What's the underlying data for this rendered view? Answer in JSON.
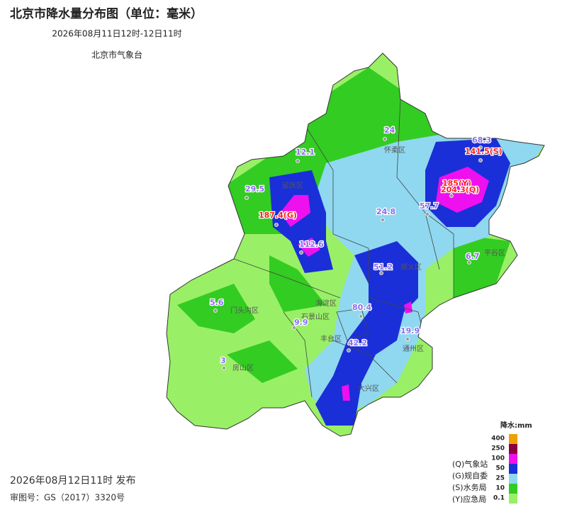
{
  "header": {
    "title": "北京市降水量分布图（单位：毫米）",
    "subtitle": "2026年08月11日12时-12日11时",
    "issuer": "北京市气象台"
  },
  "footer": {
    "release": "2026年08月12日11时 发布",
    "map_number": "审图号：GS（2017）3320号"
  },
  "legend": {
    "title": "降水:mm",
    "levels": [
      {
        "label": "400",
        "color": "#f0a000"
      },
      {
        "label": "250",
        "color": "#8b0040"
      },
      {
        "label": "100",
        "color": "#ee10ee"
      },
      {
        "label": "50",
        "color": "#1a2fd8"
      },
      {
        "label": "25",
        "color": "#8fd8f0"
      },
      {
        "label": "10",
        "color": "#33cc22"
      },
      {
        "label": "0.1",
        "color": "#99f066"
      }
    ],
    "sources": [
      "(Q)气象站",
      "(G)规自委",
      "(S)水务局",
      "(Y)应急局"
    ]
  },
  "districts": [
    "怀柔区",
    "延庆区",
    "门头沟区",
    "石景山区",
    "海淀区",
    "丰台区",
    "房山区",
    "顺义区",
    "平谷区",
    "通州区",
    "大兴区"
  ],
  "stations": [
    {
      "label": "24",
      "color": "#8a6ef0"
    },
    {
      "label": "12.1",
      "color": "#8a6ef0"
    },
    {
      "label": "29.5",
      "color": "#8a6ef0"
    },
    {
      "label": "187.4(G)",
      "color": "#ff2020"
    },
    {
      "label": "112.6",
      "color": "#8a6ef0"
    },
    {
      "label": "24.8",
      "color": "#8a6ef0"
    },
    {
      "label": "57.7",
      "color": "#8a6ef0"
    },
    {
      "label": "68.3",
      "color": "#8a6ef0"
    },
    {
      "label": "141.5(S)",
      "color": "#ff2020"
    },
    {
      "label": "185(Y)",
      "color": "#ff2020"
    },
    {
      "label": "204.3(Q)",
      "color": "#ff2020"
    },
    {
      "label": "51.2",
      "color": "#8a6ef0"
    },
    {
      "label": "80.4",
      "color": "#8a6ef0"
    },
    {
      "label": "9.9",
      "color": "#8a6ef0"
    },
    {
      "label": "5.6",
      "color": "#8a6ef0"
    },
    {
      "label": "3",
      "color": "#8a6ef0"
    },
    {
      "label": "42.2",
      "color": "#8a6ef0"
    },
    {
      "label": "19.9",
      "color": "#8a6ef0"
    },
    {
      "label": "6.7",
      "color": "#8a6ef0"
    }
  ]
}
